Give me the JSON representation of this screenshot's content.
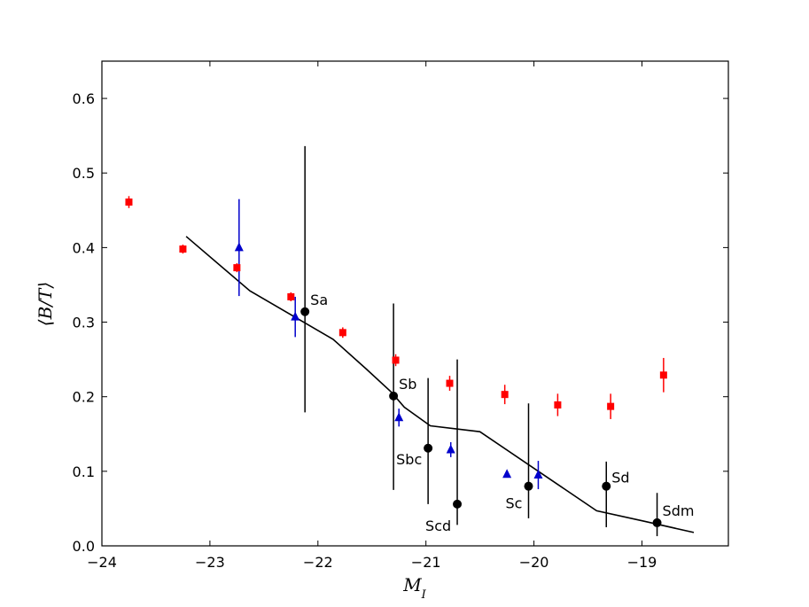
{
  "chart_data": {
    "type": "scatter",
    "xlabel": "M_I",
    "ylabel": "⟨B/T⟩",
    "xlim": [
      -24,
      -18.2
    ],
    "ylim": [
      0,
      0.65
    ],
    "xticks": [
      -24,
      -23,
      -22,
      -21,
      -20,
      -19
    ],
    "yticks": [
      0.0,
      0.1,
      0.2,
      0.3,
      0.4,
      0.5,
      0.6
    ],
    "grid": false,
    "colors": {
      "red": "#ff0000",
      "blue": "#0000cc",
      "black": "#000000"
    },
    "red_squares": {
      "x": [
        -23.75,
        -23.25,
        -22.75,
        -22.25,
        -21.77,
        -21.28,
        -20.78,
        -20.27,
        -19.78,
        -19.29,
        -18.8
      ],
      "y": [
        0.461,
        0.398,
        0.373,
        0.334,
        0.286,
        0.249,
        0.218,
        0.203,
        0.189,
        0.187,
        0.229
      ],
      "err": [
        0.008,
        0.006,
        0.006,
        0.006,
        0.007,
        0.008,
        0.01,
        0.013,
        0.015,
        0.017,
        0.023
      ]
    },
    "blue_triangles": {
      "x": [
        -22.73,
        -22.21,
        -21.25,
        -20.77,
        -20.25,
        -19.96
      ],
      "y": [
        0.4,
        0.307,
        0.172,
        0.129,
        0.096,
        0.095
      ],
      "err": [
        0.065,
        0.027,
        0.012,
        0.01,
        0.004,
        0.019
      ]
    },
    "morphology_points": {
      "x": [
        -22.12,
        -21.3,
        -20.98,
        -20.71,
        -20.05,
        -19.33,
        -18.86
      ],
      "y": [
        0.314,
        0.201,
        0.131,
        0.056,
        0.08,
        0.08,
        0.031
      ],
      "err_lo": [
        0.135,
        0.126,
        0.075,
        0.028,
        0.043,
        0.055,
        0.018
      ],
      "err_hi": [
        0.222,
        0.124,
        0.094,
        0.194,
        0.111,
        0.033,
        0.04
      ],
      "labels": [
        "Sa",
        "Sb",
        "Sbc",
        "Scd",
        "Sc",
        "Sd",
        "Sdm"
      ]
    },
    "trend_line": {
      "x": [
        -23.22,
        -22.63,
        -21.86,
        -21.55,
        -21.32,
        -21.2,
        -20.96,
        -20.5,
        -20.02,
        -19.42,
        -18.98,
        -18.52
      ],
      "y": [
        0.415,
        0.342,
        0.277,
        0.237,
        0.206,
        0.186,
        0.161,
        0.153,
        0.106,
        0.047,
        0.033,
        0.018
      ]
    }
  }
}
